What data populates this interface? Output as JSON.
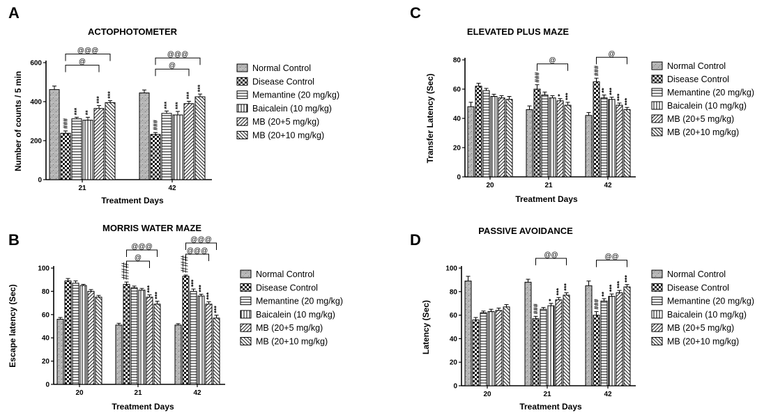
{
  "legend_names": [
    "Normal Control",
    "Disease Control",
    "Memantine (20 mg/kg)",
    "Baicalein (10 mg/kg)",
    "MB (20+5 mg/kg)",
    "MB (20+10 mg/kg)"
  ],
  "chart_data": [
    {
      "panel": "A",
      "type": "bar",
      "title": "ACTOPHOTOMETER",
      "xlabel": "Treatment Days",
      "ylabel": "Number of counts / 5 min",
      "ylim": [
        0,
        600
      ],
      "yticks": [
        0,
        200,
        400,
        600
      ],
      "grid": false,
      "legend": "right",
      "categories": [
        "21",
        "42"
      ],
      "series": [
        {
          "name": "Normal Control",
          "values": [
            462,
            445
          ],
          "err": [
            18,
            15
          ]
        },
        {
          "name": "Disease Control",
          "values": [
            238,
            232
          ],
          "err": [
            12,
            10
          ]
        },
        {
          "name": "Memantine (20 mg/kg)",
          "values": [
            312,
            340
          ],
          "err": [
            8,
            12
          ]
        },
        {
          "name": "Baicalein (10 mg/kg)",
          "values": [
            305,
            332
          ],
          "err": [
            15,
            18
          ]
        },
        {
          "name": "MB (20+5 mg/kg)",
          "values": [
            365,
            390
          ],
          "err": [
            15,
            12
          ]
        },
        {
          "name": "MB (20+10 mg/kg)",
          "values": [
            395,
            425
          ],
          "err": [
            10,
            14
          ]
        }
      ],
      "annotations": [
        [
          "###",
          "***",
          "**",
          "***",
          "***"
        ],
        [
          "###",
          "***",
          "***",
          "***",
          "***"
        ]
      ],
      "brackets": [
        {
          "cat": 0,
          "to": 4,
          "label": "@"
        },
        {
          "cat": 0,
          "to": 5,
          "label": "@@@"
        },
        {
          "cat": 1,
          "to": 4,
          "label": "@"
        },
        {
          "cat": 1,
          "to": 5,
          "label": "@@@"
        }
      ]
    },
    {
      "panel": "B",
      "type": "bar",
      "title": "MORRIS WATER MAZE",
      "xlabel": "Treatment Days",
      "ylabel": "Escape latency (Sec)",
      "ylim": [
        0,
        100
      ],
      "yticks": [
        0,
        20,
        40,
        60,
        80,
        100
      ],
      "grid": false,
      "legend": "right",
      "categories": [
        "20",
        "21",
        "42"
      ],
      "series": [
        {
          "name": "Normal Control",
          "values": [
            56,
            51,
            51
          ],
          "err": [
            1.5,
            1.5,
            1.2
          ]
        },
        {
          "name": "Disease Control",
          "values": [
            89,
            86,
            93
          ],
          "err": [
            2,
            2,
            1
          ]
        },
        {
          "name": "Memantine (20 mg/kg)",
          "values": [
            87,
            83,
            80
          ],
          "err": [
            2,
            1.5,
            2
          ]
        },
        {
          "name": "Baicalein (10 mg/kg)",
          "values": [
            85,
            81,
            76
          ],
          "err": [
            1,
            1.5,
            1.5
          ]
        },
        {
          "name": "MB (20+5 mg/kg)",
          "values": [
            80,
            75,
            69
          ],
          "err": [
            1.5,
            2,
            2
          ]
        },
        {
          "name": "MB (20+10 mg/kg)",
          "values": [
            75,
            69,
            57
          ],
          "err": [
            1.5,
            2.5,
            2.5
          ]
        }
      ],
      "annotations": [
        [
          "",
          "",
          "",
          "",
          ""
        ],
        [
          "###",
          "",
          "",
          "***",
          "***"
        ],
        [
          "###",
          "***",
          "***",
          "***",
          "***"
        ]
      ],
      "brackets": [
        {
          "cat": 1,
          "to": 4,
          "label": "@"
        },
        {
          "cat": 1,
          "to": 5,
          "label": "@@@"
        },
        {
          "cat": 2,
          "to": 4,
          "label": "@@@"
        },
        {
          "cat": 2,
          "to": 5,
          "label": "@@@"
        }
      ]
    },
    {
      "panel": "C",
      "type": "bar",
      "title": "ELEVATED PLUS MAZE",
      "xlabel": "Treatment Days",
      "ylabel": "Transfer Latency (Sec)",
      "ylim": [
        0,
        80
      ],
      "yticks": [
        0,
        20,
        40,
        60,
        80
      ],
      "grid": false,
      "legend": "right",
      "categories": [
        "20",
        "21",
        "42"
      ],
      "series": [
        {
          "name": "Normal Control",
          "values": [
            48,
            46,
            42
          ],
          "err": [
            3,
            2.5,
            2
          ]
        },
        {
          "name": "Disease Control",
          "values": [
            62,
            60,
            65
          ],
          "err": [
            2,
            3,
            2.5
          ]
        },
        {
          "name": "Memantine (20 mg/kg)",
          "values": [
            59,
            56,
            54
          ],
          "err": [
            1.5,
            2,
            2
          ]
        },
        {
          "name": "Baicalein (10 mg/kg)",
          "values": [
            55,
            54,
            53
          ],
          "err": [
            1.5,
            1.5,
            1.5
          ]
        },
        {
          "name": "MB (20+5 mg/kg)",
          "values": [
            54,
            52,
            49
          ],
          "err": [
            1.5,
            1.5,
            1.5
          ]
        },
        {
          "name": "MB (20+10 mg/kg)",
          "values": [
            53,
            49,
            46
          ],
          "err": [
            2,
            2,
            1.5
          ]
        }
      ],
      "annotations": [
        [
          "",
          "",
          "",
          "",
          ""
        ],
        [
          "###",
          "",
          "",
          "*",
          "***"
        ],
        [
          "###",
          "**",
          "***",
          "***",
          "***"
        ]
      ],
      "brackets": [
        {
          "cat": 1,
          "to": 5,
          "label": "@"
        },
        {
          "cat": 2,
          "to": 5,
          "label": "@"
        }
      ]
    },
    {
      "panel": "D",
      "type": "bar",
      "title": "PASSIVE AVOIDANCE",
      "xlabel": "Treatment Days",
      "ylabel": "Latency (Sec)",
      "ylim": [
        0,
        100
      ],
      "yticks": [
        0,
        20,
        40,
        60,
        80,
        100
      ],
      "grid": false,
      "legend": "right",
      "categories": [
        "20",
        "21",
        "42"
      ],
      "series": [
        {
          "name": "Normal Control",
          "values": [
            89,
            88,
            85
          ],
          "err": [
            4,
            2.5,
            4
          ]
        },
        {
          "name": "Disease Control",
          "values": [
            56,
            57,
            60
          ],
          "err": [
            2,
            2,
            3
          ]
        },
        {
          "name": "Memantine (20 mg/kg)",
          "values": [
            62,
            65,
            72
          ],
          "err": [
            1.5,
            1.5,
            2
          ]
        },
        {
          "name": "Baicalein (10 mg/kg)",
          "values": [
            63,
            68,
            76
          ],
          "err": [
            2,
            2,
            2
          ]
        },
        {
          "name": "MB (20+5 mg/kg)",
          "values": [
            64,
            73,
            79
          ],
          "err": [
            2,
            2,
            2
          ]
        },
        {
          "name": "MB (20+10 mg/kg)",
          "values": [
            67,
            77,
            84
          ],
          "err": [
            2,
            2,
            2
          ]
        }
      ],
      "annotations": [
        [
          "",
          "",
          "",
          "",
          ""
        ],
        [
          "###",
          "",
          "*",
          "***",
          "***"
        ],
        [
          "###",
          "**",
          "***",
          "***",
          "***"
        ]
      ],
      "brackets": [
        {
          "cat": 1,
          "to": 5,
          "label": "@@"
        },
        {
          "cat": 2,
          "to": 5,
          "label": "@@"
        }
      ]
    }
  ]
}
